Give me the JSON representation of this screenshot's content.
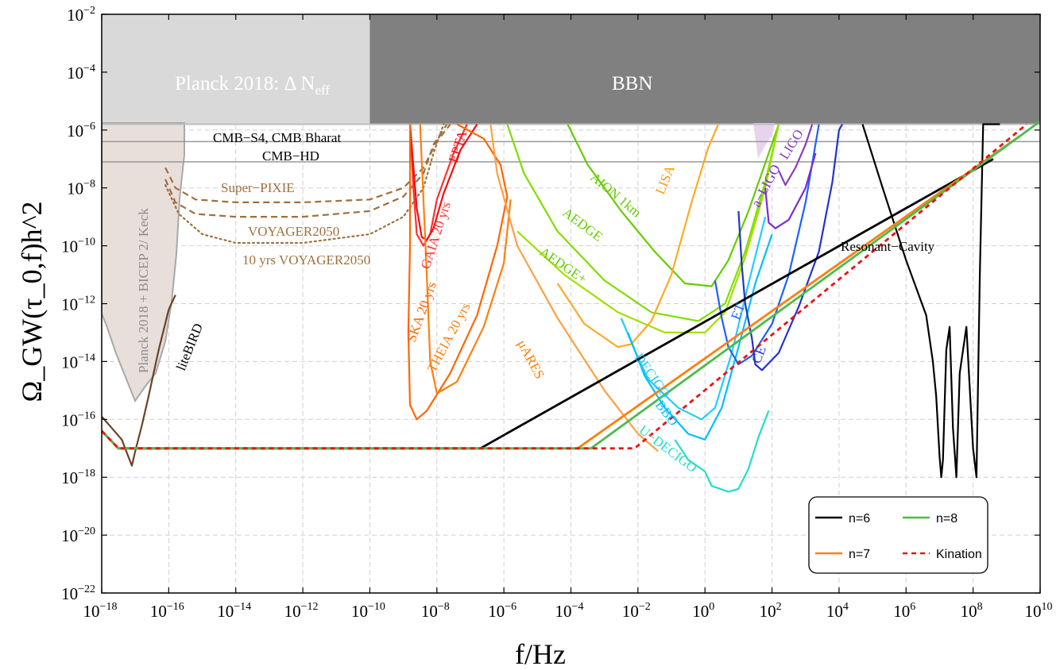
{
  "chart_data": {
    "type": "line",
    "x_scale": "log10",
    "y_scale": "log10",
    "xlim_exp": [
      -18,
      10
    ],
    "ylim_exp": [
      -22,
      -2
    ],
    "x_ticks_exp": [
      -18,
      -16,
      -14,
      -12,
      -10,
      -8,
      -6,
      -4,
      -2,
      0,
      2,
      4,
      6,
      8,
      10
    ],
    "y_ticks_exp": [
      -22,
      -20,
      -18,
      -16,
      -14,
      -12,
      -10,
      -8,
      -6,
      -4,
      -2
    ],
    "xlabel": "f/Hz",
    "ylabel": "Ω_GW(τ_0,f)h^2",
    "grid": true,
    "regions": [
      {
        "name": "bbn",
        "label": "BBN",
        "color": "#808080",
        "x_exp": [
          -10,
          10
        ],
        "y_exp": [
          -5.8,
          -2
        ],
        "text_color": "#ffffff"
      },
      {
        "name": "planck-neff",
        "label": "Planck 2018: Δ N",
        "label_sub": "eff",
        "color": "#d9d9d9",
        "x_exp": [
          -18,
          -10
        ],
        "y_exp": [
          -5.8,
          -2
        ],
        "text_color": "#ffffff"
      },
      {
        "name": "planck-bicep",
        "label": "Planck 2018 + BICEP 2/ Keck",
        "color": "#e8dfdb",
        "edge": "#a9a9a9"
      },
      {
        "name": "ligo-region",
        "label": "LIGO",
        "color": "#e6d4ee"
      }
    ],
    "hlines": [
      {
        "name": "cmb-s4",
        "label": "CMB−S4, CMB Bharat",
        "y_exp": -6.4
      },
      {
        "name": "cmb-hd",
        "label": "CMB−HD",
        "y_exp": -7.1
      }
    ],
    "series": [
      {
        "name": "n=6",
        "color": "#000000",
        "dash": "",
        "points": [
          [
            -18,
            -16.4
          ],
          [
            -17.5,
            -17
          ],
          [
            -6.7,
            -17
          ],
          [
            8.6,
            -7
          ]
        ]
      },
      {
        "name": "n=7",
        "color": "#ff7f0e",
        "dash": "",
        "points": [
          [
            -18,
            -16.4
          ],
          [
            -17.5,
            -17
          ],
          [
            -3.8,
            -17
          ],
          [
            9.4,
            -6.2
          ]
        ]
      },
      {
        "name": "n=8",
        "color": "#4cbb4c",
        "dash": "",
        "points": [
          [
            -18,
            -16.4
          ],
          [
            -17.5,
            -17
          ],
          [
            -3.4,
            -17
          ],
          [
            10,
            -5.7
          ]
        ]
      },
      {
        "name": "Kination",
        "color": "#ee1111",
        "dash": "6,5",
        "points": [
          [
            -18,
            -16.4
          ],
          [
            -17.5,
            -17
          ],
          [
            -2.1,
            -17
          ],
          [
            9.6,
            -5.8
          ]
        ]
      }
    ],
    "sensitivity_curves": [
      {
        "name": "liteBIRD",
        "color": "#6b4226",
        "label_color": "#000000",
        "dash": "",
        "points": [
          [
            -18,
            -15.9
          ],
          [
            -17.7,
            -16.3
          ],
          [
            -17.4,
            -16.7
          ],
          [
            -17.2,
            -17.3
          ],
          [
            -17.1,
            -17.6
          ],
          [
            -17,
            -17.1
          ],
          [
            -16.8,
            -16.2
          ],
          [
            -16.6,
            -15.2
          ],
          [
            -16.3,
            -13.6
          ],
          [
            -16,
            -12.2
          ],
          [
            -15.8,
            -11.7
          ]
        ]
      },
      {
        "name": "Super−PIXIE",
        "color": "#a0703c",
        "label_color": "#a0703c",
        "dash": "8,5",
        "points": [
          [
            -16.1,
            -7.3
          ],
          [
            -15.8,
            -8
          ],
          [
            -15.2,
            -8.4
          ],
          [
            -14,
            -8.5
          ],
          [
            -12,
            -8.5
          ],
          [
            -10,
            -8.4
          ],
          [
            -9,
            -8
          ],
          [
            -8.4,
            -7.3
          ],
          [
            -8,
            -6.4
          ],
          [
            -7.6,
            -5.8
          ]
        ]
      },
      {
        "name": "VOYAGER2050",
        "color": "#a0703c",
        "label_color": "#000000",
        "dash": "8,5",
        "points": [
          [
            -16.1,
            -7.7
          ],
          [
            -15.8,
            -8.5
          ],
          [
            -15.2,
            -8.9
          ],
          [
            -14,
            -9
          ],
          [
            -12,
            -9
          ],
          [
            -10,
            -8.8
          ],
          [
            -9,
            -8.3
          ],
          [
            -8.4,
            -7.5
          ],
          [
            -8.1,
            -6.5
          ],
          [
            -7.7,
            -5.8
          ]
        ]
      },
      {
        "name": "10 yrs VOYAGER2050",
        "color": "#a0703c",
        "label_color": "#a0703c",
        "dash": "2,4",
        "points": [
          [
            -16.1,
            -7.9
          ],
          [
            -15.7,
            -8.9
          ],
          [
            -15,
            -9.6
          ],
          [
            -14,
            -9.9
          ],
          [
            -12,
            -9.9
          ],
          [
            -10,
            -9.6
          ],
          [
            -9,
            -9
          ],
          [
            -8.4,
            -8
          ],
          [
            -8.1,
            -6.8
          ],
          [
            -7.8,
            -5.8
          ]
        ]
      },
      {
        "name": "GAIA 20 yrs",
        "color": "#ff3030",
        "label_color": "#ff3030",
        "dash": "",
        "points": [
          [
            -8.8,
            -5.8
          ],
          [
            -8.7,
            -8
          ],
          [
            -8.6,
            -9.6
          ],
          [
            -8.4,
            -10
          ],
          [
            -8.2,
            -9.6
          ],
          [
            -8,
            -8.4
          ],
          [
            -7.5,
            -6.8
          ],
          [
            -7.1,
            -5.8
          ]
        ]
      },
      {
        "name": "EPTA",
        "color": "#ee1111",
        "label_color": "#ee1111",
        "dash": "",
        "points": [
          [
            -8.8,
            -5.8
          ],
          [
            -8.6,
            -8.7
          ],
          [
            -8.45,
            -9.7
          ],
          [
            -8.3,
            -9.8
          ],
          [
            -8.1,
            -9.4
          ],
          [
            -7.8,
            -8.2
          ],
          [
            -7.3,
            -6.7
          ],
          [
            -6.8,
            -5.8
          ]
        ]
      },
      {
        "name": "SKA 20 yrs",
        "color": "#ff6600",
        "label_color": "#ff6600",
        "dash": "",
        "points": [
          [
            -8.8,
            -5.8
          ],
          [
            -8.8,
            -10
          ],
          [
            -8.85,
            -13
          ],
          [
            -8.8,
            -15.5
          ],
          [
            -8.6,
            -16
          ],
          [
            -8.3,
            -15.7
          ],
          [
            -7.6,
            -14.4
          ],
          [
            -6.8,
            -12.4
          ],
          [
            -6.2,
            -10
          ],
          [
            -5.9,
            -8.3
          ],
          [
            -6.1,
            -7.2
          ],
          [
            -6.6,
            -6.3
          ],
          [
            -7.4,
            -5.8
          ]
        ]
      },
      {
        "name": "THEIA 20 yrs",
        "color": "#ff7f0e",
        "label_color": "#ff7f0e",
        "dash": "",
        "points": [
          [
            -8.5,
            -5.8
          ],
          [
            -8.3,
            -11
          ],
          [
            -8.2,
            -14
          ],
          [
            -8,
            -15.1
          ],
          [
            -7.4,
            -14.7
          ],
          [
            -6.6,
            -12.8
          ],
          [
            -6,
            -10.6
          ],
          [
            -5.8,
            -8.4
          ]
        ]
      },
      {
        "name": "μARES",
        "color": "#ffa040",
        "label_color": "#ff7f0e",
        "dash": "",
        "points": [
          [
            -6.4,
            -5.8
          ],
          [
            -6.2,
            -7.5
          ],
          [
            -5.6,
            -10
          ],
          [
            -4.4,
            -12.5
          ],
          [
            -3,
            -15
          ],
          [
            -2,
            -16.5
          ],
          [
            -1.4,
            -17.1
          ]
        ]
      },
      {
        "name": "AION 1km",
        "color": "#66cc00",
        "label_color": "#66cc00",
        "dash": "",
        "points": [
          [
            -4.1,
            -5.8
          ],
          [
            -3.5,
            -7.2
          ],
          [
            -2.5,
            -8.8
          ],
          [
            -1.5,
            -10.2
          ],
          [
            -0.6,
            -11.3
          ],
          [
            0.2,
            -11.4
          ],
          [
            0.7,
            -10.5
          ],
          [
            1.3,
            -8.8
          ],
          [
            1.9,
            -6.8
          ],
          [
            2.2,
            -5.8
          ]
        ]
      },
      {
        "name": "AEDGE",
        "color": "#80dd00",
        "label_color": "#66cc00",
        "dash": "",
        "points": [
          [
            -5.9,
            -5.8
          ],
          [
            -5.4,
            -7.5
          ],
          [
            -4.4,
            -9.5
          ],
          [
            -3,
            -11.2
          ],
          [
            -1.6,
            -12.3
          ],
          [
            -0.2,
            -12.6
          ],
          [
            0.6,
            -12
          ],
          [
            1.2,
            -10.2
          ],
          [
            1.8,
            -7.8
          ],
          [
            2.2,
            -5.8
          ]
        ]
      },
      {
        "name": "AEDGE+",
        "color": "#a0e000",
        "label_color": "#66cc00",
        "dash": "",
        "points": [
          [
            -5.6,
            -9.5
          ],
          [
            -4.2,
            -11
          ],
          [
            -2.6,
            -12.3
          ],
          [
            -1.2,
            -13
          ],
          [
            0,
            -13
          ],
          [
            0.6,
            -12.3
          ],
          [
            1.2,
            -10.4
          ],
          [
            1.8,
            -8
          ],
          [
            2.2,
            -5.8
          ]
        ]
      },
      {
        "name": "LISA",
        "color": "#ffaa22",
        "label_color": "#ff9900",
        "dash": "",
        "points": [
          [
            -4.4,
            -11.3
          ],
          [
            -3.6,
            -12.7
          ],
          [
            -2.6,
            -13.5
          ],
          [
            -2.2,
            -13.4
          ],
          [
            -1.6,
            -12.6
          ],
          [
            -1,
            -11
          ],
          [
            -0.4,
            -8.5
          ],
          [
            0.1,
            -6.6
          ],
          [
            0.4,
            -5.8
          ]
        ]
      },
      {
        "name": "DECIGO",
        "color": "#22ccff",
        "label_color": "#22ccff",
        "dash": "",
        "points": [
          [
            -2.5,
            -12.5
          ],
          [
            -2.1,
            -13.6
          ],
          [
            -1.7,
            -14.6
          ],
          [
            -0.8,
            -15.6
          ],
          [
            -0.1,
            -16
          ],
          [
            0.3,
            -15.6
          ],
          [
            0.8,
            -13.7
          ],
          [
            1.3,
            -11.3
          ],
          [
            1.8,
            -9
          ]
        ]
      },
      {
        "name": "BBO",
        "color": "#00bfff",
        "label_color": "#00bfff",
        "dash": "",
        "points": [
          [
            -2.3,
            -13
          ],
          [
            -1.8,
            -14.5
          ],
          [
            -1.2,
            -15.6
          ],
          [
            -0.5,
            -16.5
          ],
          [
            0,
            -16.7
          ],
          [
            0.5,
            -15.6
          ],
          [
            1,
            -13.5
          ],
          [
            1.5,
            -11.3
          ],
          [
            2,
            -9.6
          ]
        ]
      },
      {
        "name": "U−DECIGO",
        "color": "#22ddcc",
        "label_color": "#22ddcc",
        "dash": "",
        "points": [
          [
            -0.9,
            -16.7
          ],
          [
            -0.5,
            -17.4
          ],
          [
            0,
            -17.8
          ],
          [
            0.2,
            -18.3
          ],
          [
            0.7,
            -18.5
          ],
          [
            1,
            -18.4
          ],
          [
            1.3,
            -17.7
          ],
          [
            1.6,
            -16.6
          ],
          [
            1.9,
            -15.7
          ]
        ]
      },
      {
        "name": "ET",
        "color": "#1e5fff",
        "label_color": "#1e5fff",
        "dash": "",
        "points": [
          [
            0.3,
            -11.2
          ],
          [
            0.5,
            -12.5
          ],
          [
            0.7,
            -13.5
          ],
          [
            1,
            -14.1
          ],
          [
            1.4,
            -13.8
          ],
          [
            2,
            -12.7
          ],
          [
            2.5,
            -11
          ],
          [
            3,
            -8.5
          ],
          [
            3.4,
            -5.8
          ]
        ]
      },
      {
        "name": "CE",
        "color": "#2233cc",
        "label_color": "#2233cc",
        "dash": "",
        "points": [
          [
            1,
            -8.8
          ],
          [
            1.1,
            -10.7
          ],
          [
            1.2,
            -12
          ],
          [
            1.4,
            -13.2
          ],
          [
            1.5,
            -14.1
          ],
          [
            1.7,
            -14.3
          ],
          [
            2.2,
            -13.7
          ],
          [
            2.8,
            -12.1
          ],
          [
            3.4,
            -10.2
          ],
          [
            3.8,
            -7.8
          ],
          [
            4,
            -6
          ],
          [
            4.1,
            -5.8
          ]
        ]
      },
      {
        "name": "a−LIGO",
        "color": "#7b2bd6",
        "label_color": "#7b2bd6",
        "dash": "",
        "points": [
          [
            1.8,
            -8
          ],
          [
            1.9,
            -9.2
          ],
          [
            2.1,
            -9.4
          ],
          [
            2.5,
            -9.1
          ],
          [
            3,
            -8
          ],
          [
            3.3,
            -6.8
          ]
        ]
      },
      {
        "name": "LIGO",
        "color": "#8a3fc0",
        "label_color": "#8a3fc0",
        "dash": "",
        "points": [
          [
            2.2,
            -7.4
          ],
          [
            2.4,
            -7.9
          ],
          [
            2.7,
            -7.3
          ],
          [
            3,
            -6.5
          ],
          [
            3.2,
            -5.8
          ]
        ]
      },
      {
        "name": "Resonant−Cavity",
        "color": "#000000",
        "label_color": "#000000",
        "dash": "",
        "points": [
          [
            4.7,
            -5.8
          ],
          [
            5.3,
            -8
          ],
          [
            6,
            -10.5
          ],
          [
            6.6,
            -12.4
          ],
          [
            6.8,
            -14
          ],
          [
            6.9,
            -15.2
          ],
          [
            7,
            -17.3
          ],
          [
            7.05,
            -18
          ],
          [
            7.1,
            -17.4
          ],
          [
            7.2,
            -13.6
          ],
          [
            7.3,
            -12.8
          ],
          [
            7.4,
            -16.3
          ],
          [
            7.5,
            -18
          ],
          [
            7.6,
            -14.4
          ],
          [
            7.8,
            -12.8
          ],
          [
            8,
            -17
          ],
          [
            8.1,
            -18
          ],
          [
            8.2,
            -11
          ],
          [
            8.3,
            -5.8
          ],
          [
            8.5,
            -5.8
          ],
          [
            8.8,
            -5.8
          ]
        ]
      }
    ],
    "annotations": [
      "Planck 2018: Δ N",
      "eff",
      "BBN"
    ],
    "legend": {
      "position": "bottom-right",
      "entries": [
        {
          "label": "n=6",
          "color": "#000000",
          "dash": ""
        },
        {
          "label": "n=8",
          "color": "#4cbb4c",
          "dash": ""
        },
        {
          "label": "n=7",
          "color": "#ff7f0e",
          "dash": ""
        },
        {
          "label": "Kination",
          "color": "#ee1111",
          "dash": "6,5"
        }
      ]
    }
  }
}
